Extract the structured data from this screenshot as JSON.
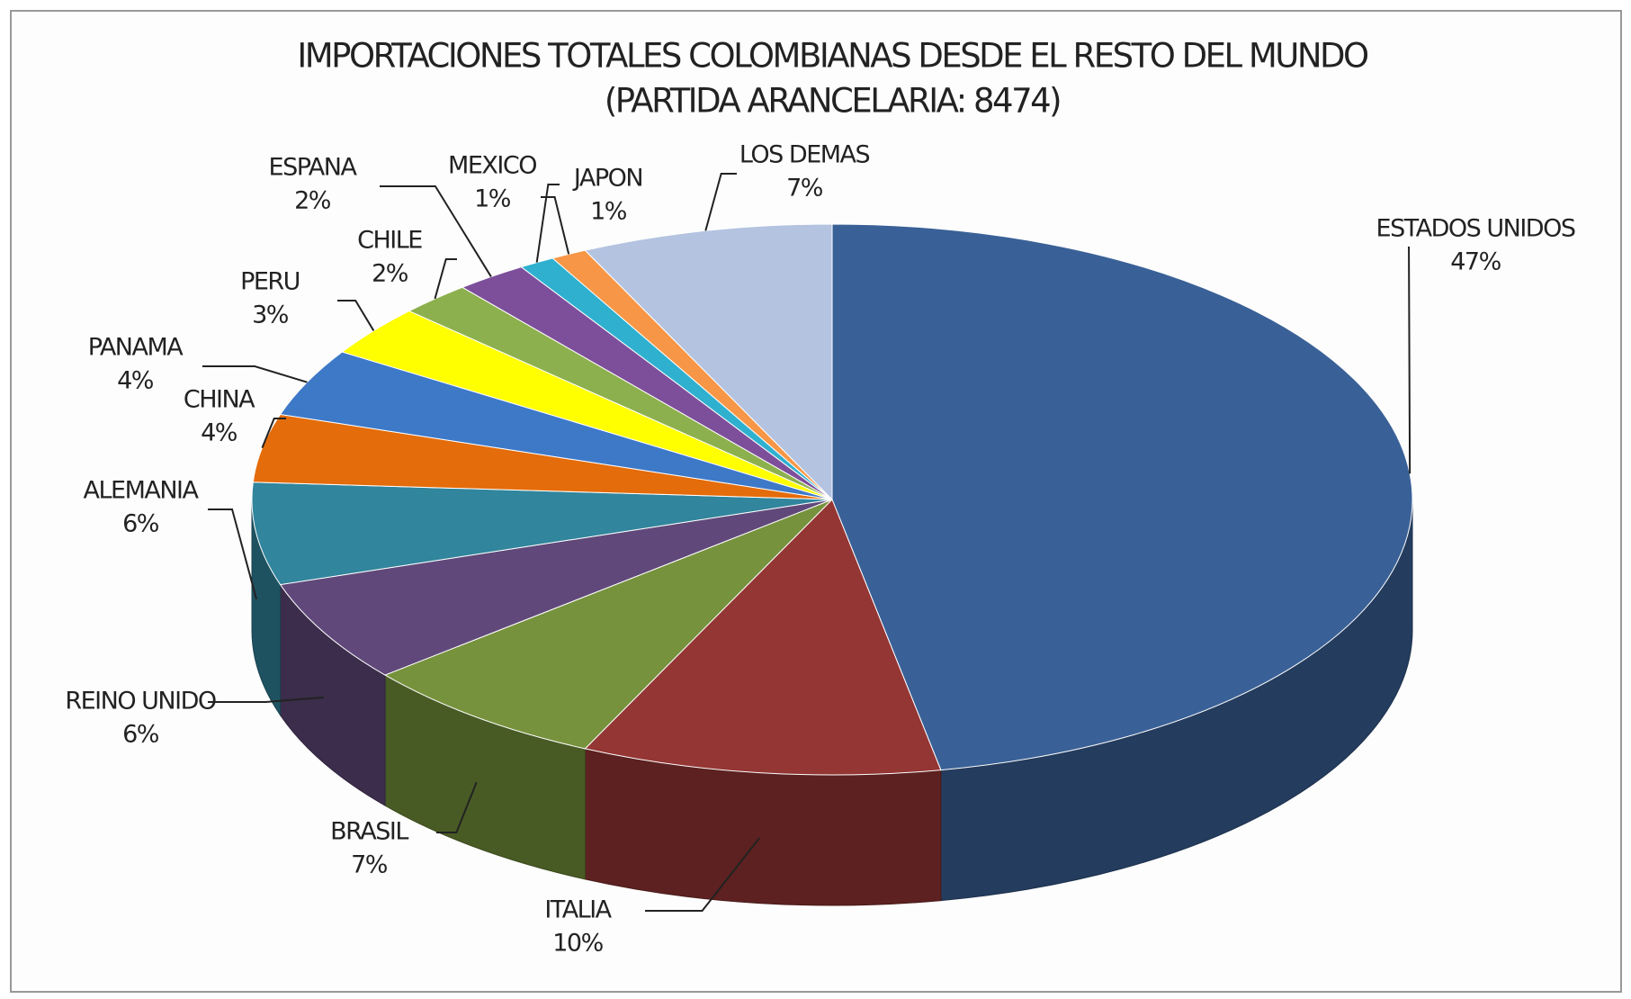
{
  "chart_data": {
    "type": "pie",
    "title": "IMPORTACIONES TOTALES COLOMBIANAS DESDE EL RESTO DEL MUNDO",
    "subtitle": "(PARTIDA ARANCELARIA: 8474)",
    "categories": [
      "ESTADOS UNIDOS",
      "ITALIA",
      "BRASIL",
      "REINO UNIDO",
      "ALEMANIA",
      "CHINA",
      "PANAMA",
      "PERU",
      "CHILE",
      "ESPANA",
      "MEXICO",
      "JAPON",
      "LOS DEMAS"
    ],
    "values": [
      47,
      10,
      7,
      6,
      6,
      4,
      4,
      3,
      2,
      2,
      1,
      1,
      7
    ],
    "value_labels": [
      "47%",
      "10%",
      "7%",
      "6%",
      "6%",
      "4%",
      "4%",
      "3%",
      "2%",
      "2%",
      "1%",
      "1%",
      "7%"
    ],
    "colors": [
      "#3a6197",
      "#943634",
      "#76923c",
      "#60497a",
      "#31859c",
      "#e46c0a",
      "#3e79c8",
      "#ffff00",
      "#8db04e",
      "#7d4f9a",
      "#2fb0cf",
      "#f79646",
      "#b3c3e0"
    ]
  }
}
